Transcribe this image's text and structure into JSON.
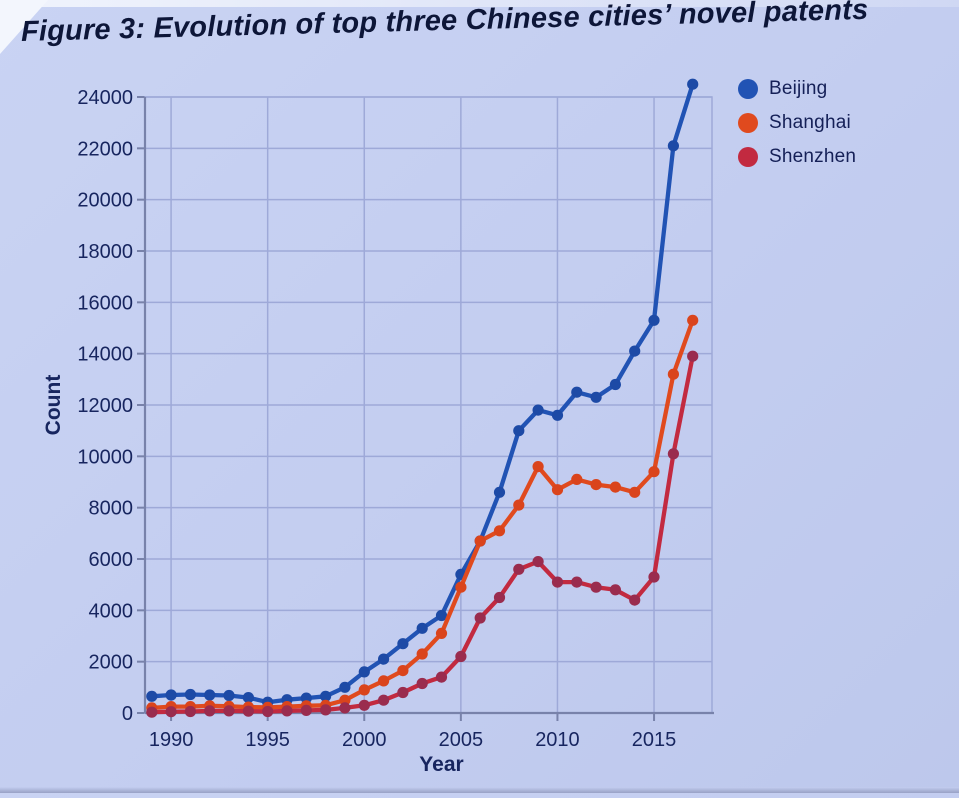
{
  "page": {
    "title": "Figure 3: Evolution of top three Chinese cities’ novel patents"
  },
  "colors": {
    "background": "#c3cdf0",
    "grid": "#9ea9d8",
    "axis": "#7882aa",
    "tick_text": "#17255f",
    "title_text": "#0d1638",
    "beijing": "#2153b4",
    "shanghai": "#e04a1e",
    "shenzhen": "#c22a40"
  },
  "chart_data": {
    "type": "line",
    "title": "Figure 3: Evolution of top three Chinese cities’ novel patents",
    "xlabel": "Year",
    "ylabel": "Count",
    "grid": true,
    "legend_position": "top-right",
    "x": [
      1989,
      1990,
      1991,
      1992,
      1993,
      1994,
      1995,
      1996,
      1997,
      1998,
      1999,
      2000,
      2001,
      2002,
      2003,
      2004,
      2005,
      2006,
      2007,
      2008,
      2009,
      2010,
      2011,
      2012,
      2013,
      2014,
      2015,
      2016,
      2017
    ],
    "xticks": [
      1990,
      1995,
      2000,
      2005,
      2010,
      2015
    ],
    "yticks": [
      0,
      2000,
      4000,
      6000,
      8000,
      10000,
      12000,
      14000,
      16000,
      18000,
      20000,
      22000,
      24000
    ],
    "ylim": [
      0,
      24000
    ],
    "xlim": [
      1988.65,
      2018.0
    ],
    "series": [
      {
        "name": "Beijing",
        "color": "#2153b4",
        "marker_color": "#1d4aa6",
        "values": [
          650,
          700,
          720,
          700,
          680,
          600,
          420,
          520,
          580,
          650,
          1000,
          1600,
          2100,
          2700,
          3300,
          3800,
          5400,
          6700,
          8600,
          11000,
          11800,
          11600,
          12500,
          12300,
          12800,
          14100,
          15300,
          22100,
          24500
        ]
      },
      {
        "name": "Shanghai",
        "color": "#e04a1e",
        "marker_color": "#da441c",
        "values": [
          200,
          250,
          250,
          280,
          260,
          230,
          220,
          250,
          280,
          300,
          500,
          900,
          1250,
          1650,
          2300,
          3100,
          4900,
          6700,
          7100,
          8100,
          9600,
          8700,
          9100,
          8900,
          8800,
          8600,
          9400,
          13200,
          15300
        ]
      },
      {
        "name": "Shenzhen",
        "color": "#c22a40",
        "marker_color": "#9a2c4e",
        "values": [
          30,
          50,
          60,
          80,
          80,
          70,
          60,
          80,
          100,
          120,
          200,
          300,
          500,
          800,
          1150,
          1400,
          2200,
          3700,
          4500,
          5600,
          5900,
          5100,
          5100,
          4900,
          4800,
          4400,
          5300,
          10100,
          13900
        ]
      }
    ]
  }
}
